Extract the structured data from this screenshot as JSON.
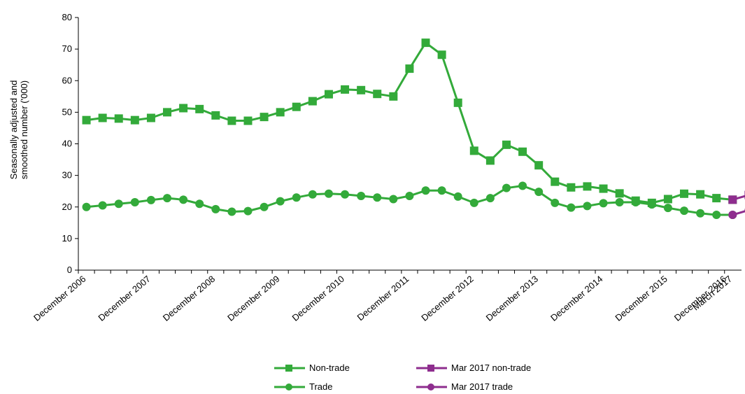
{
  "chart_data": {
    "type": "line",
    "ylabel": [
      "Seasonally adjusted and",
      "smoothed number ('000)"
    ],
    "xlabel": "",
    "ylim": [
      0,
      80
    ],
    "yticks": [
      0,
      10,
      20,
      30,
      40,
      50,
      60,
      70,
      80
    ],
    "xtick_labels": [
      "December 2006",
      "December 2007",
      "December 2008",
      "December 2009",
      "December 2010",
      "December 2011",
      "December 2012",
      "December 2013",
      "December 2014",
      "December 2015",
      "December 2016",
      "March 2017"
    ],
    "colors": {
      "green": "#33aa3a",
      "purple": "#8e2d8e"
    },
    "series": [
      {
        "name": "Non-trade",
        "marker": "square",
        "color": "#33aa3a",
        "values": [
          47.5,
          48.2,
          48,
          47.5,
          48.2,
          50,
          51.3,
          51,
          49,
          47.3,
          47.3,
          48.5,
          50,
          51.7,
          53.5,
          55.7,
          57.2,
          57,
          55.8,
          55,
          63.8,
          72,
          68.2,
          53,
          37.8,
          34.7,
          39.7,
          37.5,
          33.2,
          28,
          26.2,
          26.5,
          25.8,
          24.3,
          22,
          21.3,
          22.5,
          24.2,
          24,
          22.8,
          22.3
        ]
      },
      {
        "name": "Trade",
        "marker": "circle",
        "color": "#33aa3a",
        "values": [
          20,
          20.5,
          21,
          21.5,
          22.2,
          22.8,
          22.3,
          21,
          19.3,
          18.5,
          18.7,
          20,
          21.8,
          23,
          24,
          24.2,
          24,
          23.5,
          23,
          22.5,
          23.5,
          25.2,
          25.2,
          23.3,
          21.3,
          22.8,
          26,
          26.7,
          24.8,
          21.3,
          19.8,
          20.3,
          21.2,
          21.5,
          21.5,
          20.8,
          19.7,
          18.8,
          18,
          17.5,
          17.5
        ]
      },
      {
        "name": "Mar 2017 non-trade",
        "marker": "square",
        "color": "#8e2d8e",
        "from_index": 40,
        "values": [
          22.3,
          23.8
        ]
      },
      {
        "name": "Mar 2017 trade",
        "marker": "circle",
        "color": "#8e2d8e",
        "from_index": 40,
        "values": [
          17.5,
          19
        ]
      }
    ]
  }
}
